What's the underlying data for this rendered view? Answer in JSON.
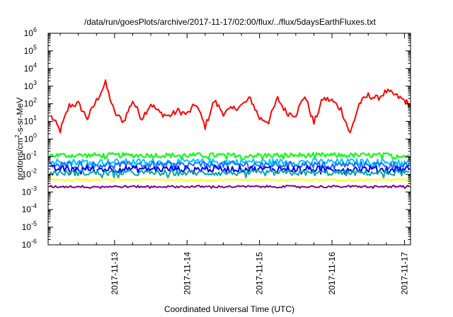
{
  "chart_data": {
    "type": "line",
    "title": "/data/run/goesPlots/archive/2017-11-17/02:00/flux/../flux/5daysEarthFluxes.txt",
    "xlabel": "Coordinated Universal Time (UTC)",
    "ylabel": {
      "prefix": "protons/cm",
      "sup": "2",
      "suffix": "-s-sr-MeV"
    },
    "y_scale": "log",
    "ylim": [
      1e-06,
      1000000.0
    ],
    "y_ticks": [
      {
        "value": 1e-06,
        "base": "10",
        "exp": "-6"
      },
      {
        "value": 1e-05,
        "base": "10",
        "exp": "-5"
      },
      {
        "value": 0.0001,
        "base": "10",
        "exp": "-4"
      },
      {
        "value": 0.001,
        "base": "10",
        "exp": "-3"
      },
      {
        "value": 0.01,
        "base": "10",
        "exp": "-2"
      },
      {
        "value": 0.1,
        "base": "10",
        "exp": "-1"
      },
      {
        "value": 1,
        "base": "10",
        "exp": "0"
      },
      {
        "value": 10,
        "base": "10",
        "exp": "1"
      },
      {
        "value": 100,
        "base": "10",
        "exp": "2"
      },
      {
        "value": 1000,
        "base": "10",
        "exp": "3"
      },
      {
        "value": 10000,
        "base": "10",
        "exp": "4"
      },
      {
        "value": 100000,
        "base": "10",
        "exp": "5"
      },
      {
        "value": 1000000,
        "base": "10",
        "exp": "6"
      }
    ],
    "xlim": [
      "2017-11-12 02:00",
      "2017-11-17 02:00"
    ],
    "x_ticks": [
      "2017-11-13",
      "2017-11-14",
      "2017-11-15",
      "2017-11-16",
      "2017-11-17"
    ],
    "grid": false,
    "legend": "none",
    "series": [
      {
        "color": "#ff0000",
        "approx_level": 50,
        "approx_range": [
          2,
          1500
        ],
        "x": [
          "2017-11-12 03:00",
          "2017-11-12 06:00",
          "2017-11-12 09:00",
          "2017-11-12 12:00",
          "2017-11-12 15:00",
          "2017-11-12 18:00",
          "2017-11-12 21:00",
          "2017-11-13 00:00",
          "2017-11-13 03:00",
          "2017-11-13 06:00",
          "2017-11-13 09:00",
          "2017-11-13 12:00",
          "2017-11-13 15:00",
          "2017-11-13 18:00",
          "2017-11-13 21:00",
          "2017-11-14 00:00",
          "2017-11-14 03:00",
          "2017-11-14 06:00",
          "2017-11-14 09:00",
          "2017-11-14 12:00",
          "2017-11-14 15:00",
          "2017-11-14 18:00",
          "2017-11-14 21:00",
          "2017-11-15 00:00",
          "2017-11-15 03:00",
          "2017-11-15 06:00",
          "2017-11-15 09:00",
          "2017-11-15 12:00",
          "2017-11-15 15:00",
          "2017-11-15 18:00",
          "2017-11-15 21:00",
          "2017-11-16 00:00",
          "2017-11-16 03:00",
          "2017-11-16 06:00",
          "2017-11-16 09:00",
          "2017-11-16 12:00",
          "2017-11-16 15:00",
          "2017-11-16 18:00",
          "2017-11-16 21:00",
          "2017-11-17 00:00",
          "2017-11-17 02:00"
        ],
        "y": [
          20,
          3,
          80,
          100,
          15,
          150,
          1500,
          30,
          10,
          150,
          15,
          100,
          30,
          20,
          40,
          25,
          100,
          5,
          150,
          30,
          50,
          80,
          200,
          15,
          10,
          200,
          30,
          25,
          300,
          8,
          200,
          150,
          50,
          2,
          100,
          300,
          200,
          500,
          300,
          150,
          80
        ]
      },
      {
        "color": "#00ff00",
        "approx_level": 0.12,
        "approx_range": [
          0.06,
          0.2
        ]
      },
      {
        "color": "#00c8ff",
        "approx_level": 0.05,
        "approx_range": [
          0.02,
          0.1
        ]
      },
      {
        "color": "#1e6eff",
        "approx_level": 0.035,
        "approx_range": [
          0.015,
          0.07
        ]
      },
      {
        "color": "#0000ff",
        "approx_level": 0.02,
        "approx_range": [
          0.008,
          0.04
        ]
      },
      {
        "color": "#00a8a8",
        "approx_level": 0.012,
        "approx_range": [
          0.005,
          0.02
        ]
      },
      {
        "color": "#ffff00",
        "approx_level": 0.005,
        "approx_range": [
          0.004,
          0.006
        ]
      },
      {
        "color": "#800080",
        "approx_level": 0.002,
        "approx_range": [
          0.0015,
          0.0025
        ]
      }
    ]
  }
}
